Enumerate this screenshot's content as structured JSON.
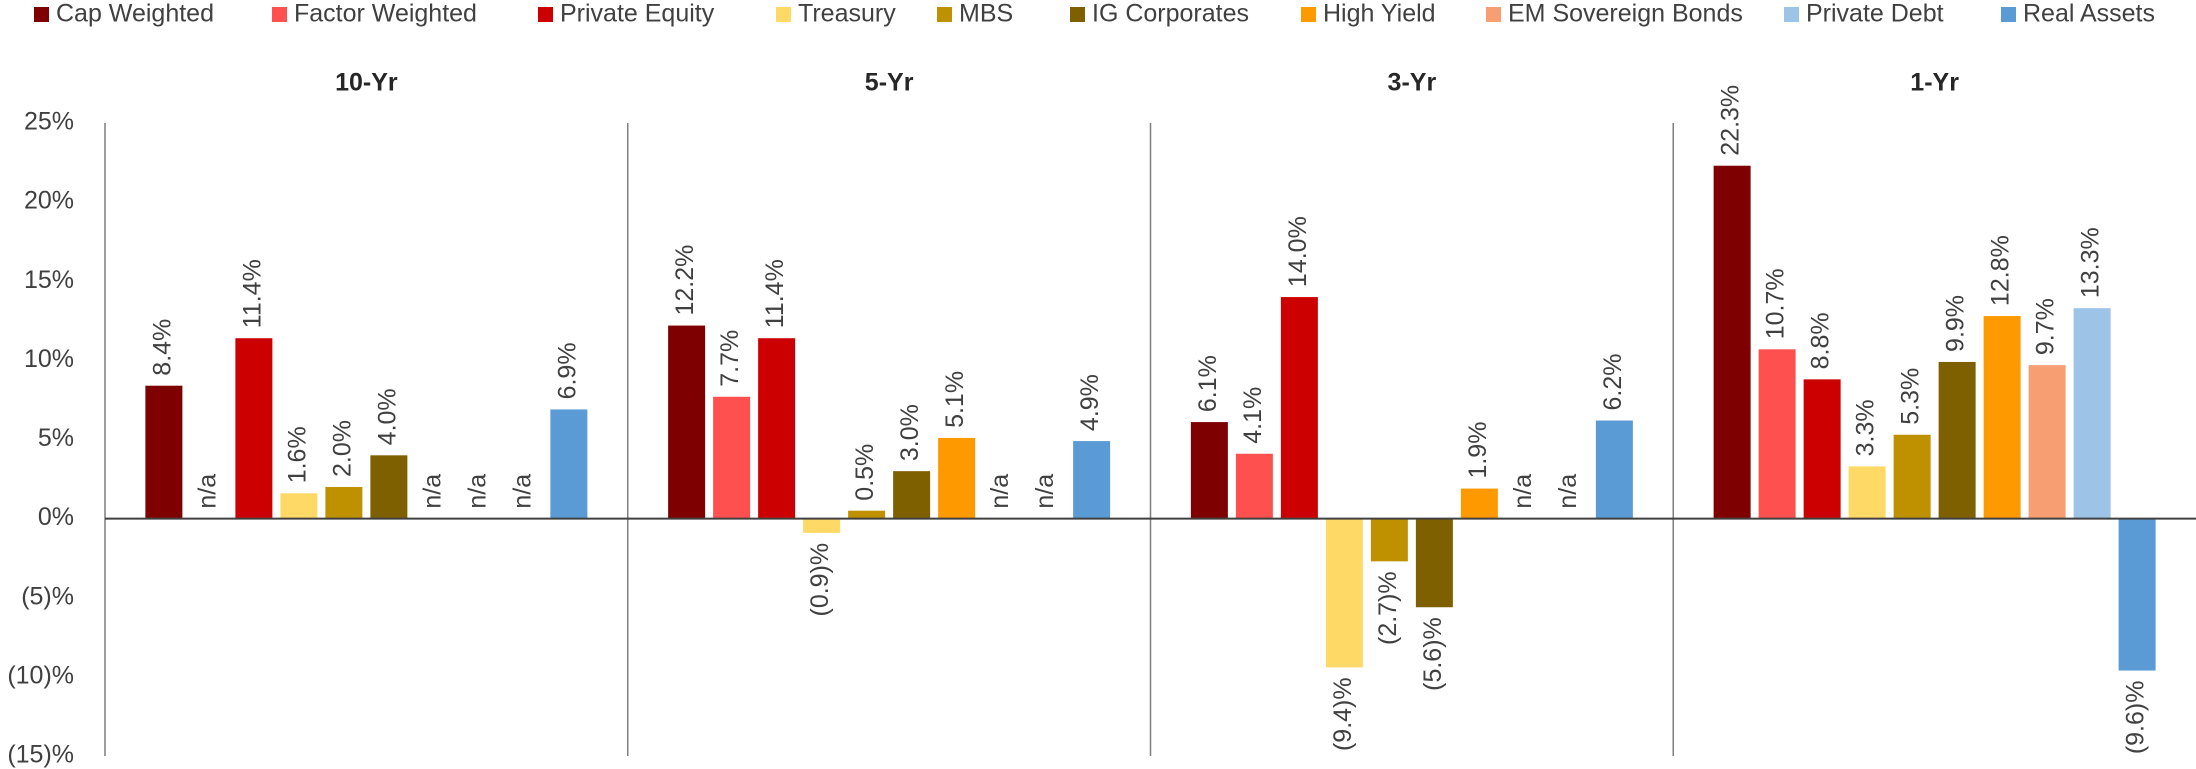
{
  "chart_data": {
    "type": "bar",
    "categories": [
      "10-Yr",
      "5-Yr",
      "3-Yr",
      "1-Yr"
    ],
    "ylim": [
      -15,
      25
    ],
    "yticks": [
      {
        "value": -15,
        "label": "(15)%"
      },
      {
        "value": -10,
        "label": "(10)%"
      },
      {
        "value": -5,
        "label": "(5)%"
      },
      {
        "value": 0,
        "label": "0%"
      },
      {
        "value": 5,
        "label": "5%"
      },
      {
        "value": 10,
        "label": "10%"
      },
      {
        "value": 15,
        "label": "15%"
      },
      {
        "value": 20,
        "label": "20%"
      },
      {
        "value": 25,
        "label": "25%"
      }
    ],
    "grid": false,
    "legend": "top",
    "series": [
      {
        "name": "Cap Weighted",
        "color": "#7f0000",
        "values": [
          8.4,
          12.2,
          6.1,
          22.3
        ],
        "value_labels": [
          "8.4%",
          "12.2%",
          "6.1%",
          "22.3%"
        ]
      },
      {
        "name": "Factor Weighted",
        "color": "#ff5050",
        "values": [
          null,
          7.7,
          4.1,
          10.7
        ],
        "value_labels": [
          "n/a",
          "7.7%",
          "4.1%",
          "10.7%"
        ]
      },
      {
        "name": "Private Equity",
        "color": "#cc0000",
        "values": [
          11.4,
          11.4,
          14.0,
          8.8
        ],
        "value_labels": [
          "11.4%",
          "11.4%",
          "14.0%",
          "8.8%"
        ]
      },
      {
        "name": "Treasury",
        "color": "#ffd966",
        "values": [
          1.6,
          -0.9,
          -9.4,
          3.3
        ],
        "value_labels": [
          "1.6%",
          "(0.9)%",
          "(9.4)%",
          "3.3%"
        ]
      },
      {
        "name": "MBS",
        "color": "#bf9000",
        "values": [
          2.0,
          0.5,
          -2.7,
          5.3
        ],
        "value_labels": [
          "2.0%",
          "0.5%",
          "(2.7)%",
          "5.3%"
        ]
      },
      {
        "name": "IG Corporates",
        "color": "#7f6000",
        "values": [
          4.0,
          3.0,
          -5.6,
          9.9
        ],
        "value_labels": [
          "4.0%",
          "3.0%",
          "(5.6)%",
          "9.9%"
        ]
      },
      {
        "name": "High Yield",
        "color": "#ff9900",
        "values": [
          null,
          5.1,
          1.9,
          12.8
        ],
        "value_labels": [
          "n/a",
          "5.1%",
          "1.9%",
          "12.8%"
        ]
      },
      {
        "name": "EM Sovereign Bonds",
        "color": "#f79f73",
        "values": [
          null,
          null,
          null,
          9.7
        ],
        "value_labels": [
          "n/a",
          "n/a",
          "n/a",
          "9.7%"
        ]
      },
      {
        "name": "Private Debt",
        "color": "#9dc3e6",
        "values": [
          null,
          null,
          null,
          13.3
        ],
        "value_labels": [
          "n/a",
          "n/a",
          "n/a",
          "13.3%"
        ]
      },
      {
        "name": "Real Assets",
        "color": "#5b9bd5",
        "values": [
          6.9,
          4.9,
          6.2,
          -9.6
        ],
        "value_labels": [
          "6.9%",
          "4.9%",
          "6.2%",
          "(9.6)%"
        ]
      }
    ]
  }
}
